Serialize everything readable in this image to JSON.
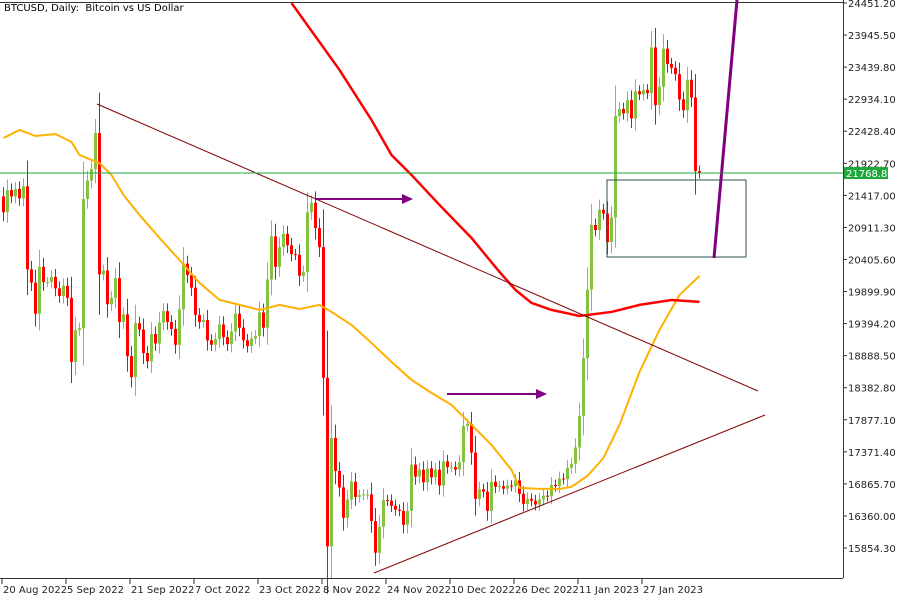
{
  "chart_data": {
    "type": "candlestick",
    "title": "BTCUSD, Daily:  Bitcoin vs US Dollar",
    "symbol": "BTCUSD",
    "timeframe": "Daily",
    "start_date": "2022-08-20",
    "end_date": "2023-02-10",
    "last_price": "21768.89",
    "ylim": [
      15854.3,
      24451.2
    ],
    "y_ticks": [
      "24451.20",
      "23945.50",
      "23439.80",
      "22934.10",
      "22428.40",
      "21922.70",
      "21417.00",
      "20911.30",
      "20405.60",
      "19899.90",
      "19394.20",
      "18888.50",
      "18382.80",
      "17877.10",
      "17371.40",
      "16865.70",
      "16360.00",
      "15854.30"
    ],
    "x_ticks": [
      "20 Aug 2022",
      "5 Sep 2022",
      "21 Sep 2022",
      "7 Oct 2022",
      "23 Oct 2022",
      "8 Nov 2022",
      "24 Nov 2022",
      "10 Dec 2022",
      "26 Dec 2022",
      "11 Jan 2023",
      "27 Jan 2023"
    ],
    "grid": false,
    "first_open": 21400,
    "close": [
      21150,
      21500,
      21400,
      21520,
      21370,
      21560,
      20250,
      20040,
      19550,
      20290,
      20050,
      20050,
      20130,
      19950,
      19830,
      19990,
      19800,
      18790,
      19290,
      19320,
      21360,
      21650,
      21830,
      22400,
      20170,
      20230,
      19700,
      19800,
      20110,
      19420,
      19540,
      18880,
      18550,
      19400,
      19300,
      18930,
      18800,
      19230,
      19080,
      19410,
      19590,
      19420,
      19310,
      19060,
      19620,
      20340,
      20160,
      19960,
      19530,
      19420,
      19450,
      19130,
      19060,
      19150,
      19380,
      19180,
      19070,
      19270,
      19550,
      19330,
      19130,
      19040,
      19160,
      19200,
      19570,
      19330,
      20090,
      20770,
      20290,
      20600,
      20810,
      20630,
      20490,
      20480,
      20150,
      20210,
      21150,
      21300,
      20900,
      20600,
      18540,
      15880,
      17590,
      17070,
      16810,
      16330,
      16620,
      16900,
      16660,
      16690,
      16700,
      16700,
      16280,
      15780,
      16190,
      16610,
      16600,
      16520,
      16460,
      16440,
      16220,
      16440,
      17170,
      16980,
      17090,
      16890,
      17110,
      16970,
      17090,
      16840,
      17220,
      17130,
      17130,
      17090,
      17210,
      17780,
      17810,
      17360,
      16630,
      16780,
      16740,
      16440,
      16900,
      16820,
      16830,
      16790,
      16840,
      16830,
      16920,
      16710,
      16550,
      16630,
      16600,
      16540,
      16620,
      16680,
      16670,
      16850,
      16830,
      16950,
      16940,
      17120,
      17180,
      17440,
      17940,
      18850,
      19930,
      20950,
      20870,
      21190,
      21130,
      20680,
      21070,
      22670,
      22780,
      22710,
      22920,
      22630,
      23060,
      23010,
      23080,
      23030,
      23750,
      22840,
      23130,
      23730,
      23490,
      23430,
      23330,
      22930,
      22760,
      23240,
      22960,
      21800,
      21768.89
    ],
    "series": [
      {
        "role": "moving-average-fast",
        "color": "#ffb000",
        "points": [
          [
            "2022-08-20",
            22322
          ],
          [
            "2022-08-24",
            22448
          ],
          [
            "2022-08-28",
            22353
          ],
          [
            "2022-09-02",
            22385
          ],
          [
            "2022-09-06",
            22259
          ],
          [
            "2022-09-08",
            22054
          ],
          [
            "2022-09-11",
            21975
          ],
          [
            "2022-09-13",
            21928
          ],
          [
            "2022-09-16",
            21738
          ],
          [
            "2022-09-19",
            21423
          ],
          [
            "2022-09-23",
            21108
          ],
          [
            "2022-09-28",
            20745
          ],
          [
            "2022-10-03",
            20398
          ],
          [
            "2022-10-08",
            20036
          ],
          [
            "2022-10-13",
            19768
          ],
          [
            "2022-10-18",
            19689
          ],
          [
            "2022-10-23",
            19610
          ],
          [
            "2022-10-28",
            19689
          ],
          [
            "2022-11-02",
            19625
          ],
          [
            "2022-11-07",
            19689
          ],
          [
            "2022-11-10",
            19578
          ],
          [
            "2022-11-15",
            19373
          ],
          [
            "2022-11-20",
            19089
          ],
          [
            "2022-11-25",
            18790
          ],
          [
            "2022-11-30",
            18506
          ],
          [
            "2022-12-05",
            18301
          ],
          [
            "2022-12-10",
            18112
          ],
          [
            "2022-12-15",
            17797
          ],
          [
            "2022-12-20",
            17481
          ],
          [
            "2022-12-25",
            17087
          ],
          [
            "2022-12-27",
            16803
          ],
          [
            "2023-01-01",
            16787
          ],
          [
            "2023-01-06",
            16787
          ],
          [
            "2023-01-09",
            16819
          ],
          [
            "2023-01-13",
            16992
          ],
          [
            "2023-01-17",
            17276
          ],
          [
            "2023-01-21",
            17797
          ],
          [
            "2023-01-26",
            18632
          ],
          [
            "2023-01-31",
            19294
          ],
          [
            "2023-02-05",
            19846
          ],
          [
            "2023-02-10",
            20146
          ]
        ]
      },
      {
        "role": "moving-average-slow",
        "color": "#ff0000",
        "points": [
          [
            "2022-10-31",
            24451
          ],
          [
            "2022-11-12",
            23395
          ],
          [
            "2022-11-20",
            22606
          ],
          [
            "2022-11-25",
            22054
          ],
          [
            "2022-11-30",
            21739
          ],
          [
            "2022-12-07",
            21266
          ],
          [
            "2022-12-15",
            20745
          ],
          [
            "2022-12-22",
            20209
          ],
          [
            "2022-12-26",
            19925
          ],
          [
            "2022-12-30",
            19720
          ],
          [
            "2023-01-04",
            19610
          ],
          [
            "2023-01-11",
            19515
          ],
          [
            "2023-01-19",
            19578
          ],
          [
            "2023-01-26",
            19689
          ],
          [
            "2023-02-03",
            19767
          ],
          [
            "2023-02-10",
            19736
          ]
        ]
      }
    ],
    "colors": {
      "bull": "#82c341",
      "bear": "#ff0000",
      "last_price": "#1fa83a",
      "trendline": "#800000",
      "arrow": "#800080",
      "zone": "#2f4f4f"
    }
  }
}
